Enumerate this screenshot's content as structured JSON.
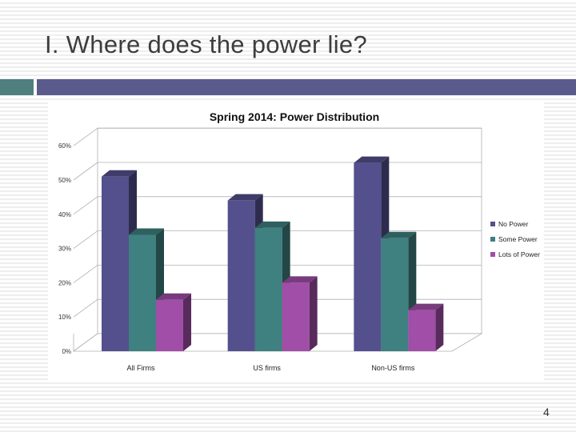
{
  "slide": {
    "title": "I. Where does the power lie?",
    "page_number": "4"
  },
  "colors": {
    "header_bar": "#5a5a8c",
    "header_accent": "#4f7f7f",
    "no_power": "#54508d",
    "some_power": "#3f8080",
    "lots_of_power": "#a04ea8"
  },
  "chart_data": {
    "type": "bar",
    "title": "Spring 2014: Power Distribution",
    "categories": [
      "All Firms",
      "US firms",
      "Non-US firms"
    ],
    "series": [
      {
        "name": "No Power",
        "values": [
          51,
          44,
          55
        ]
      },
      {
        "name": "Some Power",
        "values": [
          34,
          36,
          33
        ]
      },
      {
        "name": "Lots of Power",
        "values": [
          15,
          20,
          12
        ]
      }
    ],
    "ylim": [
      0,
      60
    ],
    "yticks": [
      "0%",
      "10%",
      "20%",
      "30%",
      "40%",
      "50%",
      "60%"
    ],
    "grid": true,
    "legend": "right",
    "style": "3d-clustered-column"
  }
}
